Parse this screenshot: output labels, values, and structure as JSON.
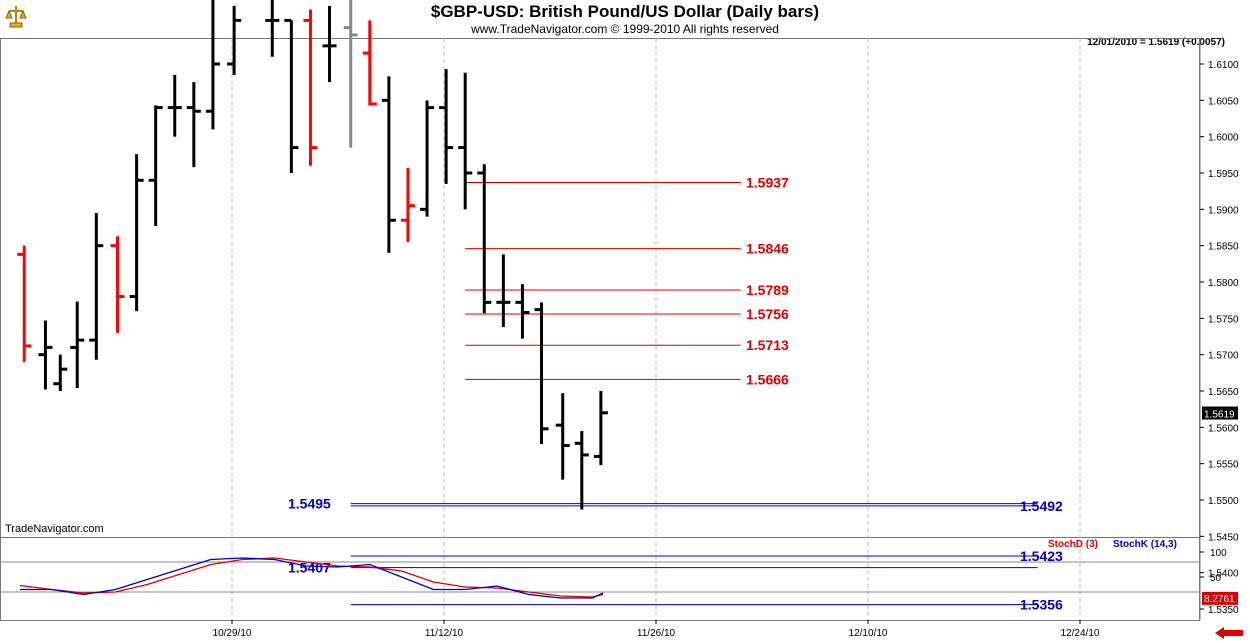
{
  "header": {
    "title": "$GBP-USD:  British Pound/US Dollar  (Daily bars)",
    "subtitle": "www.TradeNavigator.com © 1999-2010 All rights reserved",
    "quote": "12/01/2010 = 1.5619 (+0.0057)",
    "watermark": "TradeNavigator.com"
  },
  "icons": {
    "logo": "gold-scale-icon",
    "nav": "red-left-arrow-icon"
  },
  "colors": {
    "up": "#000000",
    "down": "#ff0000",
    "neutral": "#888888",
    "resistance": "#dd0000",
    "support": "#0000cc",
    "stochD": "#dd0000",
    "stochK": "#0000cc"
  },
  "chart_data": [
    {
      "type": "bar",
      "subtype": "ohlc",
      "ylim": [
        1.531,
        1.616
      ],
      "y_ticks": [
        "1.5350",
        "1.5400",
        "1.5450",
        "1.5500",
        "1.5550",
        "1.5600",
        "1.5650",
        "1.5700",
        "1.5750",
        "1.5800",
        "1.5850",
        "1.5900",
        "1.5950",
        "1.6000",
        "1.6050",
        "1.6100"
      ],
      "x_ticks": [
        "10/29/10",
        "11/12/10",
        "11/26/10",
        "12/10/10",
        "12/24/10"
      ],
      "x_tick_days": [
        10,
        20,
        30,
        40,
        50
      ],
      "grid": true,
      "bars": [
        {
          "day": 0.2,
          "o": 1.5838,
          "h": 1.585,
          "l": 1.569,
          "c": 1.5712,
          "color": "down"
        },
        {
          "day": 1.2,
          "o": 1.57,
          "h": 1.5747,
          "l": 1.5652,
          "c": 1.571,
          "color": "up"
        },
        {
          "day": 1.9,
          "o": 1.566,
          "h": 1.57,
          "l": 1.565,
          "c": 1.568,
          "color": "up"
        },
        {
          "day": 2.7,
          "o": 1.571,
          "h": 1.5773,
          "l": 1.5654,
          "c": 1.572,
          "color": "up"
        },
        {
          "day": 3.6,
          "o": 1.572,
          "h": 1.5895,
          "l": 1.5693,
          "c": 1.585,
          "color": "up"
        },
        {
          "day": 4.6,
          "o": 1.585,
          "h": 1.5863,
          "l": 1.573,
          "c": 1.578,
          "color": "down"
        },
        {
          "day": 5.5,
          "o": 1.578,
          "h": 1.5976,
          "l": 1.576,
          "c": 1.594,
          "color": "up"
        },
        {
          "day": 6.4,
          "o": 1.594,
          "h": 1.6043,
          "l": 1.5877,
          "c": 1.604,
          "color": "up"
        },
        {
          "day": 7.3,
          "o": 1.604,
          "h": 1.6085,
          "l": 1.6,
          "c": 1.604,
          "color": "up"
        },
        {
          "day": 8.2,
          "o": 1.604,
          "h": 1.6075,
          "l": 1.5958,
          "c": 1.6035,
          "color": "up"
        },
        {
          "day": 9.1,
          "o": 1.6035,
          "h": 1.619,
          "l": 1.601,
          "c": 1.61,
          "color": "up"
        },
        {
          "day": 10.1,
          "o": 1.61,
          "h": 1.618,
          "l": 1.6085,
          "c": 1.616,
          "color": "up"
        },
        {
          "day": 11.9,
          "o": 1.616,
          "h": 1.619,
          "l": 1.611,
          "c": 1.616,
          "color": "up"
        },
        {
          "day": 12.8,
          "o": 1.616,
          "h": 1.616,
          "l": 1.595,
          "c": 1.5985,
          "color": "up"
        },
        {
          "day": 13.7,
          "o": 1.616,
          "h": 1.6175,
          "l": 1.596,
          "c": 1.5985,
          "color": "down"
        },
        {
          "day": 14.6,
          "o": 1.6125,
          "h": 1.618,
          "l": 1.6075,
          "c": 1.6125,
          "color": "up"
        },
        {
          "day": 15.6,
          "o": 1.615,
          "h": 1.62,
          "l": 1.5985,
          "c": 1.614,
          "color": "neutral"
        },
        {
          "day": 16.5,
          "o": 1.6115,
          "h": 1.616,
          "l": 1.6043,
          "c": 1.6045,
          "color": "down"
        },
        {
          "day": 17.4,
          "o": 1.605,
          "h": 1.6083,
          "l": 1.584,
          "c": 1.5885,
          "color": "up"
        },
        {
          "day": 18.3,
          "o": 1.5885,
          "h": 1.5957,
          "l": 1.5855,
          "c": 1.5905,
          "color": "down"
        },
        {
          "day": 19.2,
          "o": 1.59,
          "h": 1.605,
          "l": 1.589,
          "c": 1.604,
          "color": "up"
        },
        {
          "day": 20.1,
          "o": 1.604,
          "h": 1.6093,
          "l": 1.5935,
          "c": 1.5985,
          "color": "up"
        },
        {
          "day": 21.0,
          "o": 1.5985,
          "h": 1.6088,
          "l": 1.59,
          "c": 1.595,
          "color": "up"
        },
        {
          "day": 21.9,
          "o": 1.595,
          "h": 1.5962,
          "l": 1.5757,
          "c": 1.5772,
          "color": "up"
        },
        {
          "day": 22.8,
          "o": 1.5772,
          "h": 1.5838,
          "l": 1.5738,
          "c": 1.5772,
          "color": "up"
        },
        {
          "day": 23.7,
          "o": 1.5772,
          "h": 1.5797,
          "l": 1.5722,
          "c": 1.5758,
          "color": "up"
        },
        {
          "day": 24.6,
          "o": 1.5762,
          "h": 1.5772,
          "l": 1.5577,
          "c": 1.5598,
          "color": "up"
        },
        {
          "day": 25.6,
          "o": 1.5603,
          "h": 1.5647,
          "l": 1.5528,
          "c": 1.5575,
          "color": "up"
        },
        {
          "day": 26.5,
          "o": 1.5578,
          "h": 1.5595,
          "l": 1.5487,
          "c": 1.5562,
          "color": "up"
        },
        {
          "day": 27.4,
          "o": 1.556,
          "h": 1.565,
          "l": 1.5548,
          "c": 1.562,
          "color": "up"
        }
      ],
      "levels": [
        {
          "label": "1.5937",
          "value": 1.5937,
          "kind": "resistance",
          "from": 21.0,
          "to": 34.0
        },
        {
          "label": "1.5846",
          "value": 1.5846,
          "kind": "resistance",
          "from": 21.0,
          "to": 34.0
        },
        {
          "label": "1.5789",
          "value": 1.5789,
          "kind": "resistance",
          "from": 21.0,
          "to": 34.0
        },
        {
          "label": "1.5756",
          "value": 1.5756,
          "kind": "resistance",
          "from": 21.0,
          "to": 34.0
        },
        {
          "label": "1.5713",
          "value": 1.5713,
          "kind": "resistance",
          "from": 21.0,
          "to": 34.0
        },
        {
          "label": "1.5666",
          "value": 1.5666,
          "kind": "resistance",
          "from": 21.0,
          "to": 34.0
        },
        {
          "label": "1.5495",
          "value": 1.5495,
          "kind": "support",
          "from": 15.6,
          "to": 48.0,
          "label_side": "left"
        },
        {
          "label": "1.5492",
          "value": 1.5492,
          "kind": "support",
          "from": 15.6,
          "to": 48.0,
          "label_side": "right"
        },
        {
          "label": "1.5423",
          "value": 1.5423,
          "kind": "support",
          "from": 15.6,
          "to": 48.0,
          "label_side": "right"
        },
        {
          "label": "1.5407",
          "value": 1.5407,
          "kind": "support",
          "from": 15.6,
          "to": 48.0,
          "label_side": "left"
        },
        {
          "label": "1.5356",
          "value": 1.5356,
          "kind": "support",
          "from": 15.6,
          "to": 48.0,
          "label_side": "right"
        }
      ],
      "last_price_label": "1.5619",
      "last_price": 1.5619
    },
    {
      "type": "line",
      "ylim": [
        0,
        120
      ],
      "y_ticks": [
        "50",
        "100"
      ],
      "ref_lines": [
        20,
        80
      ],
      "legend": [
        "StochD (3)",
        "StochK (14,3)"
      ],
      "last_value_label": "8.2761",
      "last_value": 8.2761,
      "series": [
        {
          "name": "StochD (3)",
          "color": "stochD",
          "x": [
            0,
            1.5,
            3,
            4.5,
            6,
            7.5,
            9,
            10.5,
            12,
            13.5,
            15,
            16.5,
            18,
            19.5,
            21,
            22.5,
            24,
            25.5,
            27,
            27.5
          ],
          "values": [
            33,
            25,
            18,
            20,
            35,
            55,
            75,
            85,
            88,
            80,
            72,
            70,
            62,
            40,
            30,
            28,
            20,
            12,
            10,
            15
          ]
        },
        {
          "name": "StochK (14,3)",
          "color": "stochK",
          "x": [
            0,
            1.5,
            3,
            4.5,
            6,
            7.5,
            9,
            10.5,
            12,
            13.5,
            15,
            16.5,
            18,
            19.5,
            21,
            22.5,
            24,
            25.5,
            27,
            27.5
          ],
          "values": [
            25,
            25,
            15,
            25,
            45,
            65,
            85,
            88,
            85,
            72,
            70,
            75,
            50,
            25,
            25,
            32,
            15,
            8,
            8,
            18
          ]
        }
      ]
    }
  ]
}
